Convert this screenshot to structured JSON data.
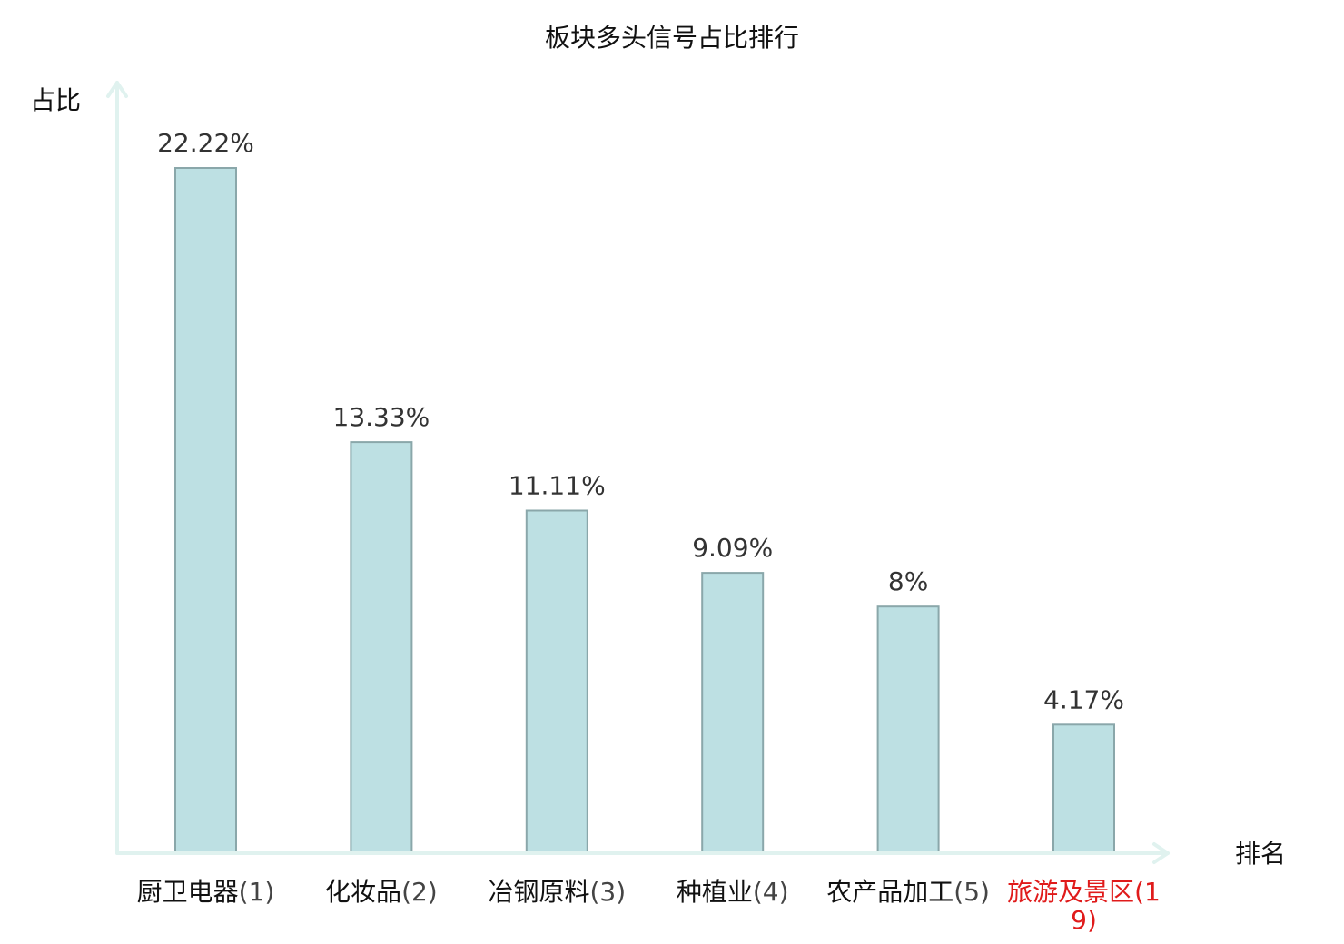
{
  "chart_data": {
    "type": "bar",
    "title": "板块多头信号占比排行",
    "ylabel": "占比",
    "xlabel": "排名",
    "categories": [
      {
        "name": "厨卫电器",
        "rank": "(1)"
      },
      {
        "name": "化妆品",
        "rank": "(2)"
      },
      {
        "name": "冶钢原料",
        "rank": "(3)"
      },
      {
        "name": "种植业",
        "rank": "(4)"
      },
      {
        "name": "农产品加工",
        "rank": "(5)"
      },
      {
        "name": "旅游及景区",
        "rank": "(19)"
      }
    ],
    "values": [
      22.22,
      13.33,
      11.11,
      9.09,
      8,
      4.17
    ],
    "value_labels": [
      "22.22%",
      "13.33%",
      "11.11%",
      "9.09%",
      "8%",
      "4.17%"
    ],
    "highlight_category": "旅游及景区",
    "ylim": [
      0,
      22.22
    ],
    "grid": false,
    "legend": "none",
    "colors": {
      "bar_fill": "#bde0e3",
      "bar_stroke": "#8aa7aa",
      "axis": "#e0f2ef",
      "highlight": "#e01b1b"
    }
  }
}
